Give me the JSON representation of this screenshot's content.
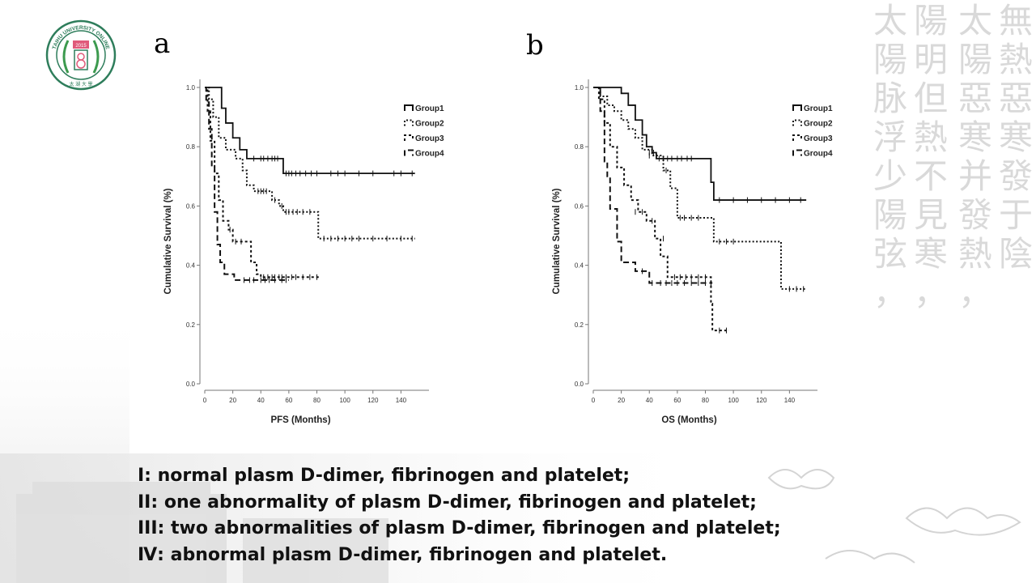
{
  "logo": {
    "ring_text": "TAIHU UNIVERSITY ONLINE",
    "year": "2015",
    "bottom_text": "太 湖 大 學",
    "color": "#2e7d5b"
  },
  "background": {
    "calligraphy_color": "#d9d9d9",
    "calligraphy_columns": [
      "無熱惡寒發于陰",
      "太陽惡寒并發熱，",
      "陽明但熱不見寒，",
      "太陽脉浮少陽弦，"
    ]
  },
  "panels": [
    {
      "label": "a"
    },
    {
      "label": "b"
    }
  ],
  "chart_data": [
    {
      "type": "line",
      "subtype": "kaplan-meier",
      "xlabel": "PFS (Months)",
      "ylabel": "Cumulative Survival (%)",
      "xlim": [
        0,
        150
      ],
      "ylim": [
        0,
        1.0
      ],
      "xticks": [
        "0",
        "20",
        "40",
        "60",
        "80",
        "100",
        "120",
        "140"
      ],
      "yticks": [
        "0.0",
        "0.2",
        "0.4",
        "0.6",
        "0.8",
        "1.0"
      ],
      "legend_position": "top-right",
      "series": [
        {
          "name": "Group1",
          "style": "solid",
          "steps": [
            [
              0,
              1.0
            ],
            [
              9,
              1.0
            ],
            [
              12,
              0.93
            ],
            [
              15,
              0.88
            ],
            [
              20,
              0.83
            ],
            [
              25,
              0.79
            ],
            [
              30,
              0.76
            ],
            [
              55,
              0.76
            ],
            [
              56,
              0.71
            ],
            [
              150,
              0.71
            ]
          ],
          "censors": [
            [
              35,
              0.76
            ],
            [
              40,
              0.76
            ],
            [
              42,
              0.76
            ],
            [
              45,
              0.76
            ],
            [
              48,
              0.76
            ],
            [
              50,
              0.76
            ],
            [
              52,
              0.76
            ],
            [
              58,
              0.71
            ],
            [
              60,
              0.71
            ],
            [
              62,
              0.71
            ],
            [
              65,
              0.71
            ],
            [
              68,
              0.71
            ],
            [
              72,
              0.71
            ],
            [
              76,
              0.71
            ],
            [
              80,
              0.71
            ],
            [
              90,
              0.71
            ],
            [
              95,
              0.71
            ],
            [
              100,
              0.71
            ],
            [
              110,
              0.71
            ],
            [
              120,
              0.71
            ],
            [
              135,
              0.71
            ],
            [
              140,
              0.71
            ],
            [
              148,
              0.71
            ]
          ]
        },
        {
          "name": "Group2",
          "style": "dotted",
          "steps": [
            [
              0,
              1.0
            ],
            [
              3,
              0.96
            ],
            [
              6,
              0.9
            ],
            [
              10,
              0.83
            ],
            [
              15,
              0.79
            ],
            [
              22,
              0.76
            ],
            [
              27,
              0.72
            ],
            [
              30,
              0.67
            ],
            [
              35,
              0.65
            ],
            [
              45,
              0.65
            ],
            [
              48,
              0.62
            ],
            [
              53,
              0.6
            ],
            [
              56,
              0.58
            ],
            [
              80,
              0.58
            ],
            [
              81,
              0.49
            ],
            [
              150,
              0.49
            ]
          ],
          "censors": [
            [
              38,
              0.65
            ],
            [
              40,
              0.65
            ],
            [
              42,
              0.65
            ],
            [
              44,
              0.65
            ],
            [
              50,
              0.62
            ],
            [
              55,
              0.6
            ],
            [
              58,
              0.58
            ],
            [
              60,
              0.58
            ],
            [
              63,
              0.58
            ],
            [
              66,
              0.58
            ],
            [
              70,
              0.58
            ],
            [
              75,
              0.58
            ],
            [
              85,
              0.49
            ],
            [
              90,
              0.49
            ],
            [
              95,
              0.49
            ],
            [
              100,
              0.49
            ],
            [
              105,
              0.49
            ],
            [
              110,
              0.49
            ],
            [
              120,
              0.49
            ],
            [
              130,
              0.49
            ],
            [
              140,
              0.49
            ],
            [
              148,
              0.49
            ]
          ]
        },
        {
          "name": "Group3",
          "style": "short-dash",
          "steps": [
            [
              0,
              1.0
            ],
            [
              2,
              0.92
            ],
            [
              4,
              0.82
            ],
            [
              7,
              0.71
            ],
            [
              10,
              0.62
            ],
            [
              13,
              0.55
            ],
            [
              17,
              0.52
            ],
            [
              20,
              0.48
            ],
            [
              30,
              0.48
            ],
            [
              33,
              0.41
            ],
            [
              37,
              0.37
            ],
            [
              40,
              0.36
            ],
            [
              82,
              0.36
            ]
          ],
          "censors": [
            [
              18,
              0.52
            ],
            [
              22,
              0.48
            ],
            [
              26,
              0.48
            ],
            [
              42,
              0.36
            ],
            [
              45,
              0.36
            ],
            [
              48,
              0.36
            ],
            [
              50,
              0.36
            ],
            [
              53,
              0.36
            ],
            [
              55,
              0.36
            ],
            [
              58,
              0.36
            ],
            [
              62,
              0.36
            ],
            [
              65,
              0.36
            ],
            [
              70,
              0.36
            ],
            [
              75,
              0.36
            ],
            [
              80,
              0.36
            ]
          ]
        },
        {
          "name": "Group4",
          "style": "dashed",
          "steps": [
            [
              0,
              1.0
            ],
            [
              1,
              0.95
            ],
            [
              3,
              0.86
            ],
            [
              5,
              0.73
            ],
            [
              7,
              0.58
            ],
            [
              9,
              0.47
            ],
            [
              11,
              0.41
            ],
            [
              14,
              0.37
            ],
            [
              21,
              0.35
            ],
            [
              60,
              0.35
            ]
          ],
          "censors": [
            [
              28,
              0.35
            ],
            [
              32,
              0.35
            ],
            [
              35,
              0.35
            ],
            [
              40,
              0.35
            ],
            [
              43,
              0.35
            ],
            [
              46,
              0.35
            ],
            [
              50,
              0.35
            ],
            [
              55,
              0.35
            ],
            [
              58,
              0.35
            ]
          ]
        }
      ]
    },
    {
      "type": "line",
      "subtype": "kaplan-meier",
      "xlabel": "OS (Months)",
      "ylabel": "Cumulative Survival (%)",
      "xlim": [
        0,
        150
      ],
      "ylim": [
        0,
        1.0
      ],
      "xticks": [
        "0",
        "20",
        "40",
        "60",
        "80",
        "100",
        "120",
        "140"
      ],
      "yticks": [
        "0.0",
        "0.2",
        "0.4",
        "0.6",
        "0.8",
        "1.0"
      ],
      "legend_position": "top-right",
      "series": [
        {
          "name": "Group1",
          "style": "solid",
          "steps": [
            [
              0,
              1.0
            ],
            [
              17,
              1.0
            ],
            [
              20,
              0.98
            ],
            [
              25,
              0.94
            ],
            [
              30,
              0.89
            ],
            [
              35,
              0.84
            ],
            [
              38,
              0.8
            ],
            [
              42,
              0.78
            ],
            [
              45,
              0.76
            ],
            [
              82,
              0.76
            ],
            [
              84,
              0.68
            ],
            [
              86,
              0.62
            ],
            [
              152,
              0.62
            ]
          ],
          "censors": [
            [
              40,
              0.78
            ],
            [
              43,
              0.78
            ],
            [
              47,
              0.76
            ],
            [
              50,
              0.76
            ],
            [
              53,
              0.76
            ],
            [
              56,
              0.76
            ],
            [
              60,
              0.76
            ],
            [
              63,
              0.76
            ],
            [
              67,
              0.76
            ],
            [
              70,
              0.76
            ],
            [
              90,
              0.62
            ],
            [
              100,
              0.62
            ],
            [
              110,
              0.62
            ],
            [
              120,
              0.62
            ],
            [
              130,
              0.62
            ],
            [
              140,
              0.62
            ],
            [
              148,
              0.62
            ]
          ]
        },
        {
          "name": "Group2",
          "style": "dotted",
          "steps": [
            [
              0,
              1.0
            ],
            [
              5,
              0.97
            ],
            [
              10,
              0.94
            ],
            [
              15,
              0.92
            ],
            [
              20,
              0.89
            ],
            [
              25,
              0.86
            ],
            [
              30,
              0.83
            ],
            [
              35,
              0.79
            ],
            [
              42,
              0.77
            ],
            [
              50,
              0.72
            ],
            [
              55,
              0.66
            ],
            [
              60,
              0.56
            ],
            [
              83,
              0.56
            ],
            [
              86,
              0.48
            ],
            [
              132,
              0.48
            ],
            [
              134,
              0.32
            ],
            [
              152,
              0.32
            ]
          ],
          "censors": [
            [
              40,
              0.77
            ],
            [
              45,
              0.77
            ],
            [
              52,
              0.72
            ],
            [
              62,
              0.56
            ],
            [
              65,
              0.56
            ],
            [
              70,
              0.56
            ],
            [
              75,
              0.56
            ],
            [
              90,
              0.48
            ],
            [
              95,
              0.48
            ],
            [
              100,
              0.48
            ],
            [
              140,
              0.32
            ],
            [
              145,
              0.32
            ],
            [
              150,
              0.32
            ]
          ]
        },
        {
          "name": "Group3",
          "style": "short-dash",
          "steps": [
            [
              0,
              1.0
            ],
            [
              4,
              0.96
            ],
            [
              8,
              0.88
            ],
            [
              12,
              0.8
            ],
            [
              17,
              0.73
            ],
            [
              22,
              0.67
            ],
            [
              27,
              0.62
            ],
            [
              32,
              0.58
            ],
            [
              38,
              0.55
            ],
            [
              44,
              0.49
            ],
            [
              48,
              0.43
            ],
            [
              53,
              0.36
            ],
            [
              83,
              0.36
            ],
            [
              84,
              0.27
            ],
            [
              85,
              0.18
            ],
            [
              97,
              0.18
            ]
          ],
          "censors": [
            [
              30,
              0.58
            ],
            [
              35,
              0.58
            ],
            [
              42,
              0.55
            ],
            [
              50,
              0.49
            ],
            [
              58,
              0.36
            ],
            [
              62,
              0.36
            ],
            [
              66,
              0.36
            ],
            [
              70,
              0.36
            ],
            [
              75,
              0.36
            ],
            [
              80,
              0.36
            ],
            [
              90,
              0.18
            ],
            [
              95,
              0.18
            ]
          ]
        },
        {
          "name": "Group4",
          "style": "dashed",
          "steps": [
            [
              0,
              1.0
            ],
            [
              5,
              0.92
            ],
            [
              8,
              0.75
            ],
            [
              10,
              0.7
            ],
            [
              12,
              0.59
            ],
            [
              17,
              0.48
            ],
            [
              20,
              0.41
            ],
            [
              30,
              0.38
            ],
            [
              40,
              0.34
            ],
            [
              45,
              0.34
            ],
            [
              85,
              0.34
            ]
          ],
          "censors": [
            [
              35,
              0.38
            ],
            [
              42,
              0.34
            ],
            [
              48,
              0.34
            ],
            [
              52,
              0.34
            ],
            [
              56,
              0.34
            ],
            [
              60,
              0.34
            ],
            [
              65,
              0.34
            ],
            [
              70,
              0.34
            ],
            [
              75,
              0.34
            ],
            [
              80,
              0.34
            ],
            [
              84,
              0.34
            ]
          ]
        }
      ]
    }
  ],
  "caption": {
    "lines": [
      "I: normal plasm D-dimer, fibrinogen and platelet;",
      "II: one abnormality of plasm D-dimer, fibrinogen and platelet;",
      "III: two abnormalities of plasm D-dimer, fibrinogen and platelet;",
      "Ⅳ: abnormal plasm D-dimer, fibrinogen and platelet."
    ]
  }
}
